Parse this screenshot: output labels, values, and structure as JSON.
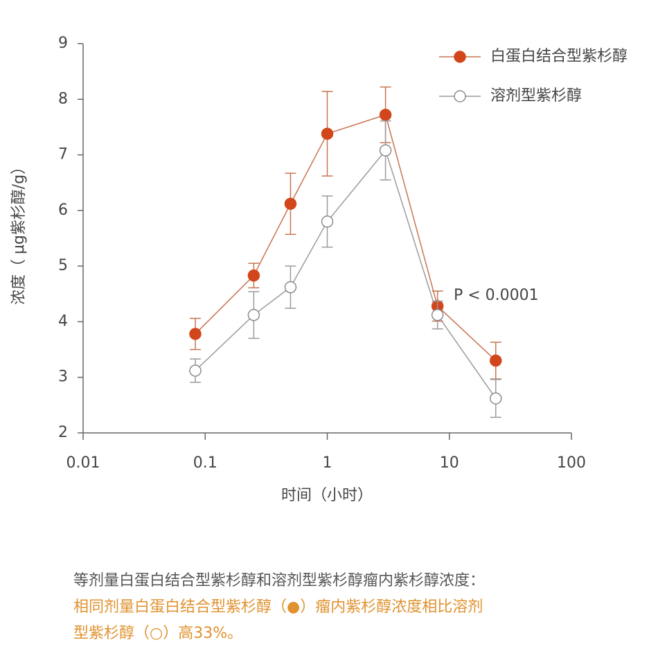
{
  "chart_data": {
    "type": "line",
    "x": [
      0.083,
      0.25,
      0.5,
      1,
      3,
      8,
      24
    ],
    "series": [
      {
        "name": "白蛋白结合型紫杉醇",
        "color": "#d2461c",
        "fill": "#d2461c",
        "line_color": "#c8734f",
        "values": [
          3.78,
          4.83,
          6.12,
          7.38,
          7.72,
          4.28,
          3.3
        ],
        "errors": [
          0.28,
          0.22,
          0.55,
          0.76,
          0.5,
          0.27,
          0.33
        ]
      },
      {
        "name": "溶剂型紫杉醇",
        "color": "#8a8a8a",
        "fill": "#ffffff",
        "line_color": "#9a9a9a",
        "values": [
          3.12,
          4.12,
          4.62,
          5.8,
          7.08,
          4.12,
          2.62
        ],
        "errors": [
          0.21,
          0.42,
          0.38,
          0.46,
          0.53,
          0.25,
          0.34
        ]
      }
    ],
    "xlim": [
      0.01,
      100
    ],
    "xticks": [
      0.01,
      0.1,
      1,
      10,
      100
    ],
    "xscale": "log",
    "ylim": [
      2,
      9
    ],
    "yticks": [
      2,
      3,
      4,
      5,
      6,
      7,
      8,
      9
    ],
    "xlabel": "时间（小时）",
    "ylabel": "浓度（ μg紫杉醇/g）",
    "annotation": "P < 0.0001",
    "legend": "upper right"
  },
  "caption": [
    "等剂量白蛋白结合型紫杉醇和溶剂型紫杉醇瘤内紫杉醇浓度：",
    "相同剂量白蛋白结合型紫杉醇（●）瘤内紫杉醇浓度相比溶剂",
    "型紫杉醇（○）高33%。"
  ]
}
